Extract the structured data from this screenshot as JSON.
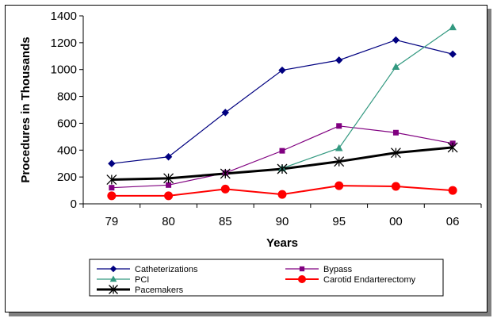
{
  "chart_data": {
    "type": "line",
    "title": "",
    "xlabel": "Years",
    "ylabel": "Procedures in Thousands",
    "categories": [
      "79",
      "80",
      "85",
      "90",
      "95",
      "00",
      "06"
    ],
    "ylim": [
      0,
      1400
    ],
    "yticks": [
      0,
      200,
      400,
      600,
      800,
      1000,
      1200,
      1400
    ],
    "grid": false,
    "legend_position": "bottom",
    "series": [
      {
        "name": "Catheterizations",
        "color": "#000080",
        "marker": "diamond",
        "values": [
          300,
          350,
          680,
          995,
          1070,
          1220,
          1115
        ]
      },
      {
        "name": "Bypass",
        "color": "#800080",
        "marker": "square",
        "values": [
          120,
          140,
          230,
          395,
          580,
          530,
          450
        ]
      },
      {
        "name": "PCI",
        "color": "#339980",
        "marker": "triangle",
        "values": [
          null,
          null,
          null,
          265,
          415,
          1020,
          1315
        ]
      },
      {
        "name": "Carotid Endarterectomy",
        "color": "#ff0000",
        "marker": "circle",
        "values": [
          60,
          60,
          110,
          70,
          135,
          130,
          100
        ]
      },
      {
        "name": "Pacemakers",
        "color": "#000000",
        "marker": "star",
        "values": [
          180,
          190,
          225,
          260,
          315,
          380,
          420
        ]
      }
    ]
  }
}
